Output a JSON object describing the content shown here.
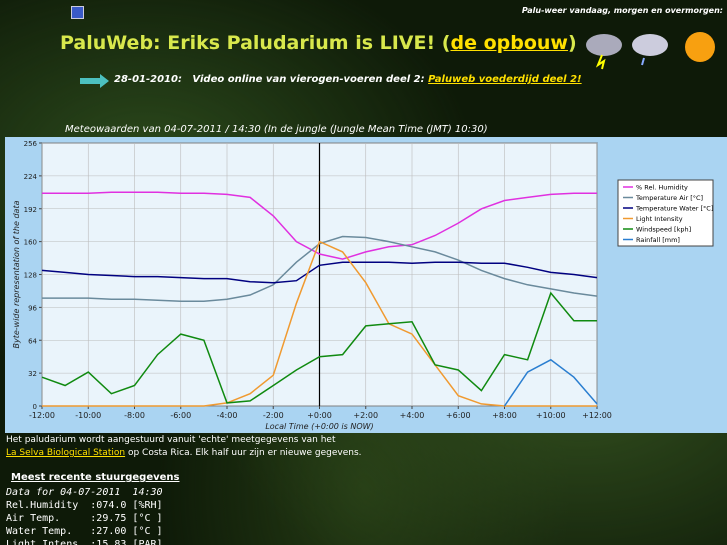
{
  "header": {
    "title_prefix": "PaluWeb: Eriks Paludarium is LIVE! (",
    "title_link": "de opbouw",
    "title_suffix": ")",
    "weather_caption": "Palu-weer vandaag, morgen en overmorgen:"
  },
  "news": {
    "date": "28-01-2010:",
    "text": "Video online van vierogen-voeren deel 2:",
    "link": "Paluweb voederdijd deel 2!"
  },
  "chart_data": {
    "type": "line",
    "title": "Meteowaarden van 04-07-2011 / 14:30 (In de jungle (Jungle Mean Time (JMT) 10:30)",
    "x_label": "Local Time (+0:00 is NOW)",
    "y_label": "Byte-wide representation of the data",
    "x": [
      -12,
      -11,
      -10,
      -9,
      -8,
      -7,
      -6,
      -5,
      -4,
      -3,
      -2,
      -1,
      0,
      1,
      2,
      3,
      4,
      5,
      6,
      7,
      8,
      9,
      10,
      11,
      12
    ],
    "xlim": [
      -12,
      12
    ],
    "ylim": [
      0,
      256
    ],
    "xticks": [
      {
        "value": -12,
        "label": "-12:00"
      },
      {
        "value": -10,
        "label": "-10:00"
      },
      {
        "value": -8,
        "label": "-8:00"
      },
      {
        "value": -6,
        "label": "-6:00"
      },
      {
        "value": -4,
        "label": "-4:00"
      },
      {
        "value": -2,
        "label": "-2:00"
      },
      {
        "value": 0,
        "label": "+0:00"
      },
      {
        "value": 2,
        "label": "+2:00"
      },
      {
        "value": 4,
        "label": "+4:00"
      },
      {
        "value": 6,
        "label": "+6:00"
      },
      {
        "value": 8,
        "label": "+8:00"
      },
      {
        "value": 10,
        "label": "+10:00"
      },
      {
        "value": 12,
        "label": "+12:00"
      }
    ],
    "yticks": [
      0,
      32,
      64,
      96,
      128,
      160,
      192,
      224,
      256
    ],
    "grid": true,
    "legend": "right",
    "series": [
      {
        "name": "% Rel. Humidity",
        "color": "#e030e0",
        "values": [
          207,
          207,
          207,
          208,
          208,
          208,
          207,
          207,
          206,
          203,
          185,
          160,
          148,
          143,
          150,
          155,
          157,
          166,
          178,
          192,
          200,
          203,
          206,
          207,
          207
        ]
      },
      {
        "name": "Temperature Air [°C]",
        "color": "#6a8a9c",
        "values": [
          105,
          105,
          105,
          104,
          104,
          103,
          102,
          102,
          104,
          108,
          118,
          140,
          158,
          165,
          164,
          160,
          155,
          150,
          142,
          132,
          124,
          118,
          114,
          110,
          107
        ]
      },
      {
        "name": "Temperature Water [°C]",
        "color": "#000080",
        "values": [
          132,
          130,
          128,
          127,
          126,
          126,
          125,
          124,
          124,
          121,
          120,
          122,
          137,
          140,
          140,
          140,
          139,
          140,
          140,
          139,
          139,
          135,
          130,
          128,
          125
        ]
      },
      {
        "name": "Light Intensity",
        "color": "#f09a30",
        "values": [
          0,
          0,
          0,
          0,
          0,
          0,
          0,
          0,
          3,
          12,
          30,
          100,
          160,
          150,
          120,
          80,
          70,
          40,
          10,
          2,
          0,
          0,
          0,
          0,
          0
        ]
      },
      {
        "name": "Windspeed [kph]",
        "color": "#108a10",
        "values": [
          28,
          20,
          33,
          12,
          20,
          50,
          70,
          64,
          3,
          5,
          20,
          35,
          48,
          50,
          78,
          80,
          82,
          40,
          35,
          15,
          50,
          45,
          110,
          83,
          83
        ]
      },
      {
        "name": "Rainfall [mm]",
        "color": "#2a7ed0",
        "values": [
          null,
          null,
          null,
          null,
          null,
          null,
          null,
          null,
          null,
          null,
          null,
          null,
          null,
          null,
          null,
          null,
          null,
          null,
          null,
          null,
          0,
          33,
          45,
          28,
          2
        ]
      }
    ]
  },
  "footer": {
    "line1": "Het paludarium wordt aangestuurd vanuit 'echte' meetgegevens van het",
    "link": "La Selva Biological Station",
    "line2": "op Costa Rica. Elk half uur zijn er nieuwe gegevens."
  },
  "recent": {
    "heading": "Meest recente stuurgegevens",
    "lines": [
      "Data for 04-07-2011  14:30",
      "Rel.Humidity  :074.0 [%RH]",
      "Air Temp.     :29.75 [°C ]",
      "Water Temp.   :27.00 [°C ]",
      "Light Intens. :15.83 [PAR]"
    ]
  }
}
